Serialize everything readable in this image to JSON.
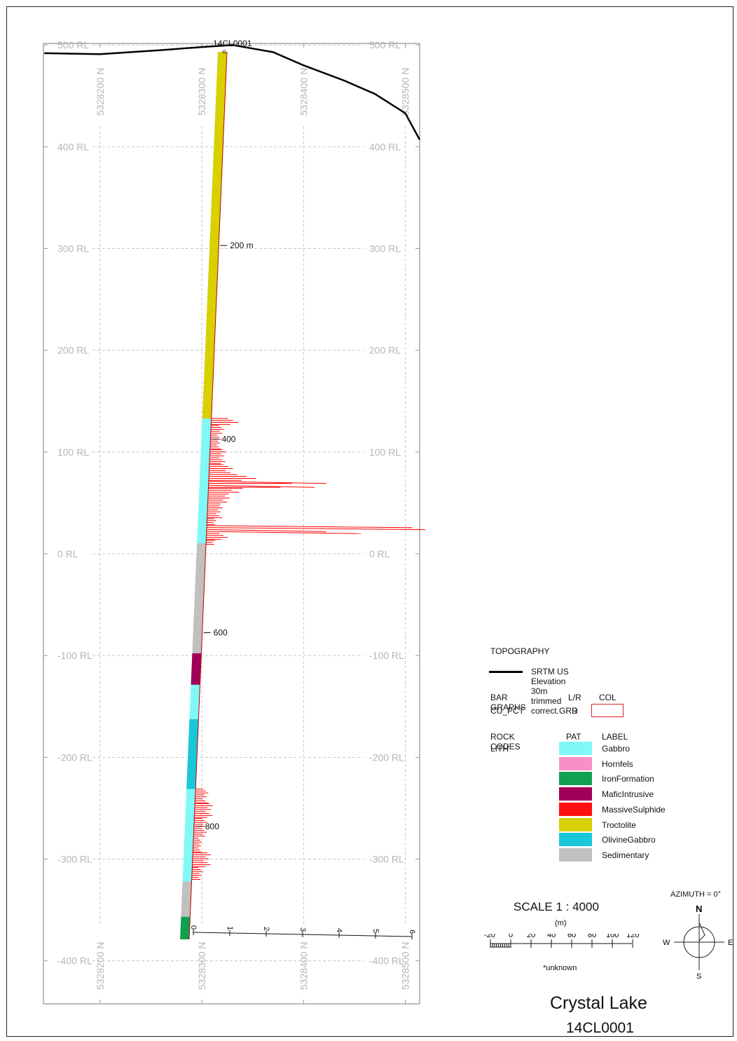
{
  "section": {
    "hole_id": "14CL0001",
    "rl_levels": [
      "500 RL",
      "400 RL",
      "300 RL",
      "200 RL",
      "100 RL",
      "0 RL",
      "-100 RL",
      "-200 RL",
      "-300 RL",
      "-400 RL"
    ],
    "northings": [
      "5328200 N",
      "5328300 N",
      "5328400 N",
      "5328500 N"
    ],
    "depth_marks": [
      "200 m",
      "400",
      "600",
      "800"
    ],
    "bar_axis_ticks": [
      "0",
      "1",
      "2",
      "3",
      "4",
      "5",
      "6"
    ]
  },
  "lithology_intervals": [
    {
      "from": 0,
      "to": 373,
      "code": "Troctolite"
    },
    {
      "from": 373,
      "to": 500,
      "code": "Gabbro"
    },
    {
      "from": 500,
      "to": 612,
      "code": "Sedimentary"
    },
    {
      "from": 612,
      "to": 644,
      "code": "MaficIntrusive"
    },
    {
      "from": 644,
      "to": 679,
      "code": "Gabbro"
    },
    {
      "from": 679,
      "to": 750,
      "code": "OlivineGabbro"
    },
    {
      "from": 750,
      "to": 844,
      "code": "Gabbro"
    },
    {
      "from": 844,
      "to": 880,
      "code": "Sedimentary"
    },
    {
      "from": 880,
      "to": 903,
      "code": "IronFormation"
    }
  ],
  "cu_pct_profile": [
    {
      "from": 373,
      "to": 380,
      "value": 0.6
    },
    {
      "from": 380,
      "to": 390,
      "value": 0.3
    },
    {
      "from": 390,
      "to": 405,
      "value": 0.25
    },
    {
      "from": 405,
      "to": 420,
      "value": 0.35
    },
    {
      "from": 420,
      "to": 430,
      "value": 0.55
    },
    {
      "from": 430,
      "to": 437,
      "value": 1.1
    },
    {
      "from": 437,
      "to": 444,
      "value": 2.6
    },
    {
      "from": 444,
      "to": 452,
      "value": 0.8
    },
    {
      "from": 452,
      "to": 462,
      "value": 0.5
    },
    {
      "from": 462,
      "to": 475,
      "value": 0.35
    },
    {
      "from": 475,
      "to": 482,
      "value": 0.2
    },
    {
      "from": 482,
      "to": 486,
      "value": 6.0
    },
    {
      "from": 486,
      "to": 490,
      "value": 4.0
    },
    {
      "from": 490,
      "to": 497,
      "value": 0.5
    },
    {
      "from": 497,
      "to": 502,
      "value": 0.2
    },
    {
      "from": 750,
      "to": 765,
      "value": 0.3
    },
    {
      "from": 765,
      "to": 780,
      "value": 0.4
    },
    {
      "from": 780,
      "to": 800,
      "value": 0.3
    },
    {
      "from": 800,
      "to": 815,
      "value": 0.2
    },
    {
      "from": 815,
      "to": 830,
      "value": 0.4
    },
    {
      "from": 830,
      "to": 844,
      "value": 0.25
    }
  ],
  "topography_profile_rl": [
    {
      "northing": 5328145,
      "rl": 492
    },
    {
      "northing": 5328200,
      "rl": 491
    },
    {
      "northing": 5328260,
      "rl": 495
    },
    {
      "northing": 5328300,
      "rl": 498
    },
    {
      "northing": 5328330,
      "rl": 500
    },
    {
      "northing": 5328370,
      "rl": 493
    },
    {
      "northing": 5328400,
      "rl": 480
    },
    {
      "northing": 5328440,
      "rl": 465
    },
    {
      "northing": 5328470,
      "rl": 452
    },
    {
      "northing": 5328500,
      "rl": 433
    },
    {
      "northing": 5328520,
      "rl": 407
    }
  ],
  "legend": {
    "topography_heading": "TOPOGRAPHY",
    "topography_item": "SRTM US Elevation 30m trimmed correct.GRD",
    "bar_graphs_heading": "BAR GRAPHS",
    "bar_graphs_lr_header": "L/R",
    "bar_graphs_col_header": "COL",
    "bar_graph_field": "CU_PCT",
    "bar_graph_side": "R",
    "bar_graph_color": "#ff0000",
    "rock_codes_heading": "ROCK CODES",
    "rock_codes_field": "LITH",
    "pat_header": "PAT",
    "label_header": "LABEL",
    "rock_codes": [
      {
        "label": "Gabbro",
        "color": "#80f8f8"
      },
      {
        "label": "Hornfels",
        "color": "#f890c8"
      },
      {
        "label": "IronFormation",
        "color": "#10a050"
      },
      {
        "label": "MaficIntrusive",
        "color": "#a00058"
      },
      {
        "label": "MassiveSulphide",
        "color": "#ff1010"
      },
      {
        "label": "Troctolite",
        "color": "#d8d000"
      },
      {
        "label": "OlivineGabbro",
        "color": "#18c8d8"
      },
      {
        "label": "Sedimentary",
        "color": "#c0c0c0"
      }
    ]
  },
  "scale": {
    "label": "SCALE  1 : 4000",
    "unit": "(m)",
    "ticks": [
      "-20",
      "0",
      "20",
      "40",
      "60",
      "80",
      "100",
      "120"
    ],
    "note": "*unknown"
  },
  "north_arrow": {
    "azimuth": "AZIMUTH = 0°",
    "n": "N",
    "s": "S",
    "e": "E",
    "w": "W"
  },
  "title": {
    "project": "Crystal Lake",
    "hole": "14CL0001"
  }
}
